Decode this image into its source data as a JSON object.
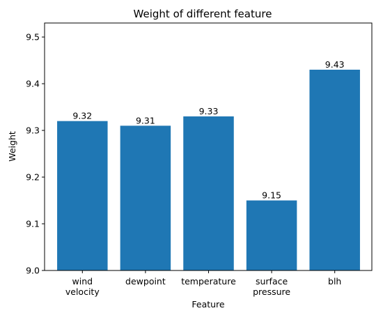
{
  "chart_data": {
    "type": "bar",
    "title": "Weight of different feature",
    "xlabel": "Feature",
    "ylabel": "Weight",
    "categories": [
      [
        "wind",
        "velocity"
      ],
      [
        "dewpoint"
      ],
      [
        "temperature"
      ],
      [
        "surface",
        "pressure"
      ],
      [
        "blh"
      ]
    ],
    "values": [
      9.32,
      9.31,
      9.33,
      9.15,
      9.43
    ],
    "data_labels": [
      "9.32",
      "9.31",
      "9.33",
      "9.15",
      "9.43"
    ],
    "ylim": [
      9.0,
      9.53
    ],
    "yticks": [
      9.0,
      9.1,
      9.2,
      9.3,
      9.4,
      9.5
    ],
    "ytick_labels": [
      "9.0",
      "9.1",
      "9.2",
      "9.3",
      "9.4",
      "9.5"
    ],
    "bar_color": "#1f77b4",
    "grid": false,
    "legend": "none"
  }
}
